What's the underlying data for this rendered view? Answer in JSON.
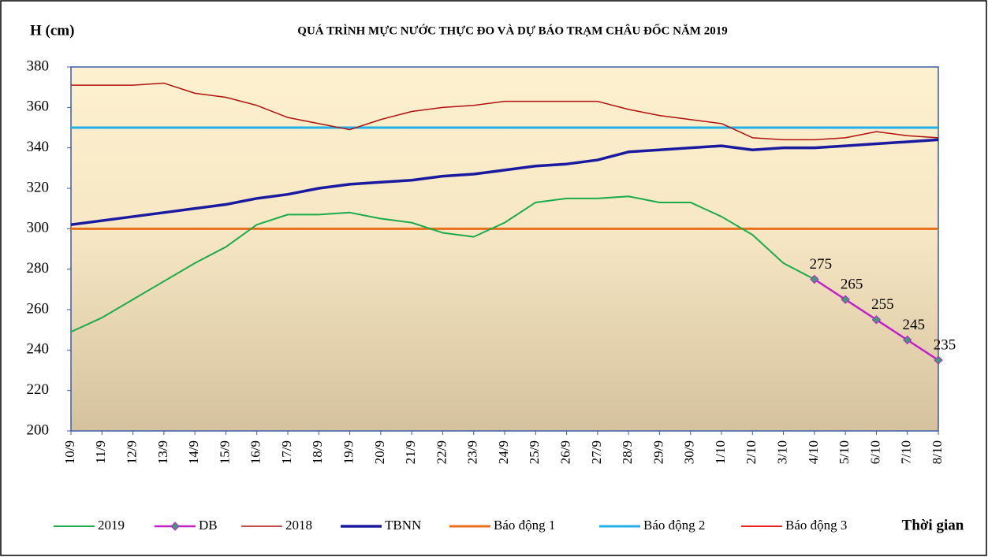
{
  "chart_data": {
    "type": "line",
    "title": "QUÁ TRÌNH MỰC NƯỚC THỰC ĐO VÀ DỰ BÁO TRẠM CHÂU ĐỐC NĂM 2019",
    "y_label": "H (cm)",
    "x_label": "Thời gian",
    "categories": [
      "10/9",
      "11/9",
      "12/9",
      "13/9",
      "14/9",
      "15/9",
      "16/9",
      "17/9",
      "18/9",
      "19/9",
      "20/9",
      "21/9",
      "22/9",
      "23/9",
      "24/9",
      "25/9",
      "26/9",
      "27/9",
      "28/9",
      "29/9",
      "30/9",
      "1/10",
      "2/10",
      "3/10",
      "4/10",
      "5/10",
      "6/10",
      "7/10",
      "8/10"
    ],
    "ylim": [
      200,
      380
    ],
    "yticks": [
      200,
      220,
      240,
      260,
      280,
      300,
      320,
      340,
      360,
      380
    ],
    "grid": false,
    "legend": "bottom",
    "series": [
      {
        "name": "2019",
        "color": "#1aab4a",
        "values": [
          249,
          256,
          265,
          274,
          283,
          291,
          302,
          307,
          307,
          308,
          305,
          303,
          298,
          296,
          303,
          313,
          315,
          315,
          316,
          313,
          313,
          306,
          297,
          283,
          275,
          null,
          null,
          null,
          null
        ]
      },
      {
        "name": "DB",
        "color": "#c020c8",
        "marker_color": "#3d9a7a",
        "values": [
          null,
          null,
          null,
          null,
          null,
          null,
          null,
          null,
          null,
          null,
          null,
          null,
          null,
          null,
          null,
          null,
          null,
          null,
          null,
          null,
          null,
          null,
          null,
          null,
          275,
          265,
          255,
          245,
          235
        ]
      },
      {
        "name": "2018",
        "color": "#b01010",
        "values": [
          371,
          371,
          371,
          372,
          367,
          365,
          361,
          355,
          352,
          349,
          354,
          358,
          360,
          361,
          363,
          363,
          363,
          363,
          359,
          356,
          354,
          352,
          345,
          344,
          344,
          345,
          348,
          346,
          345
        ]
      },
      {
        "name": "TBNN",
        "color": "#1a1aa0",
        "values": [
          302,
          304,
          306,
          308,
          310,
          312,
          315,
          317,
          320,
          322,
          323,
          324,
          326,
          327,
          329,
          331,
          332,
          334,
          338,
          339,
          340,
          341,
          339,
          340,
          340,
          341,
          342,
          343,
          344
        ]
      },
      {
        "name": "Báo động 1",
        "color": "#e8701a",
        "values": [
          300,
          300,
          300,
          300,
          300,
          300,
          300,
          300,
          300,
          300,
          300,
          300,
          300,
          300,
          300,
          300,
          300,
          300,
          300,
          300,
          300,
          300,
          300,
          300,
          300,
          300,
          300,
          300,
          300
        ]
      },
      {
        "name": "Báo động 2",
        "color": "#22b0e8",
        "values": [
          350,
          350,
          350,
          350,
          350,
          350,
          350,
          350,
          350,
          350,
          350,
          350,
          350,
          350,
          350,
          350,
          350,
          350,
          350,
          350,
          350,
          350,
          350,
          350,
          350,
          350,
          350,
          350,
          350
        ]
      },
      {
        "name": "Báo động 3",
        "color": "#ee2020",
        "values": [
          null,
          null,
          null,
          null,
          null,
          null,
          null,
          null,
          null,
          null,
          null,
          null,
          null,
          null,
          null,
          null,
          null,
          null,
          null,
          null,
          null,
          null,
          null,
          null,
          null,
          null,
          null,
          null,
          null
        ]
      }
    ]
  }
}
